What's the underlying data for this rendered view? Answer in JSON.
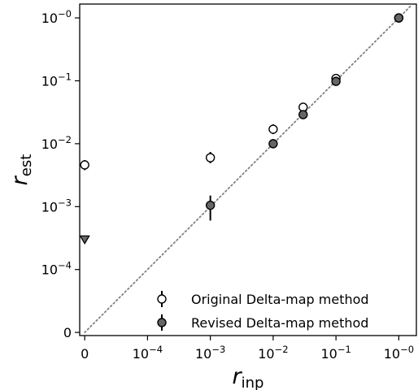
{
  "chart_data": {
    "type": "scatter",
    "xlabel": {
      "main": "r",
      "sub": "inp"
    },
    "ylabel": {
      "main": "r",
      "sub": "est"
    },
    "x_ticks": [
      {
        "pos": 0,
        "base": "0",
        "exp": ""
      },
      {
        "pos": 1,
        "base": "10",
        "exp": "−4"
      },
      {
        "pos": 2,
        "base": "10",
        "exp": "−3"
      },
      {
        "pos": 3,
        "base": "10",
        "exp": "−2"
      },
      {
        "pos": 4,
        "base": "10",
        "exp": "−1"
      },
      {
        "pos": 5,
        "base": "10",
        "exp": "−0"
      }
    ],
    "y_ticks": [
      {
        "pos": 0,
        "base": "0",
        "exp": ""
      },
      {
        "pos": 1,
        "base": "10",
        "exp": "−4"
      },
      {
        "pos": 2,
        "base": "10",
        "exp": "−3"
      },
      {
        "pos": 3,
        "base": "10",
        "exp": "−2"
      },
      {
        "pos": 4,
        "base": "10",
        "exp": "−1"
      },
      {
        "pos": 5,
        "base": "10",
        "exp": "−0"
      }
    ],
    "xlim": [
      -0.08,
      5.28
    ],
    "ylim": [
      -0.05,
      5.22
    ],
    "diagonal": {
      "style": "dotted",
      "color": "#808080"
    },
    "series": [
      {
        "name": "Original Delta-map method",
        "marker": "circle",
        "fill": "#ffffff",
        "points": [
          {
            "x": 0,
            "y": 0.0046,
            "ylo": 0.0038,
            "yhi": 0.0055
          },
          {
            "x": 0.001,
            "y": 0.006,
            "ylo": 0.0049,
            "yhi": 0.0074
          },
          {
            "x": 0.01,
            "y": 0.017,
            "ylo": 0.0142,
            "yhi": 0.0203
          },
          {
            "x": 0.03,
            "y": 0.038,
            "ylo": 0.0347,
            "yhi": 0.0417
          },
          {
            "x": 0.1,
            "y": 0.109,
            "ylo": 0.104,
            "yhi": 0.114
          },
          {
            "x": 1,
            "y": 1.0,
            "ylo": 0.985,
            "yhi": 1.015
          }
        ]
      },
      {
        "name": "Revised Delta-map method",
        "marker": "circle",
        "fill": "#666666",
        "points": [
          {
            "x": 0.001,
            "y": 0.00105,
            "ylo": 0.0006,
            "yhi": 0.0015
          },
          {
            "x": 0.01,
            "y": 0.01,
            "ylo": 0.0087,
            "yhi": 0.0114
          },
          {
            "x": 0.03,
            "y": 0.029,
            "ylo": 0.0265,
            "yhi": 0.0316
          },
          {
            "x": 0.1,
            "y": 0.098,
            "ylo": 0.093,
            "yhi": 0.103
          },
          {
            "x": 1,
            "y": 1.0,
            "ylo": 0.985,
            "yhi": 1.015
          }
        ],
        "upper_limits": [
          {
            "x": 0,
            "y": 0.0003
          }
        ]
      }
    ],
    "legend": {
      "placement": "lower-right",
      "labels": [
        "Original Delta-map method",
        "Revised Delta-map method"
      ]
    }
  }
}
